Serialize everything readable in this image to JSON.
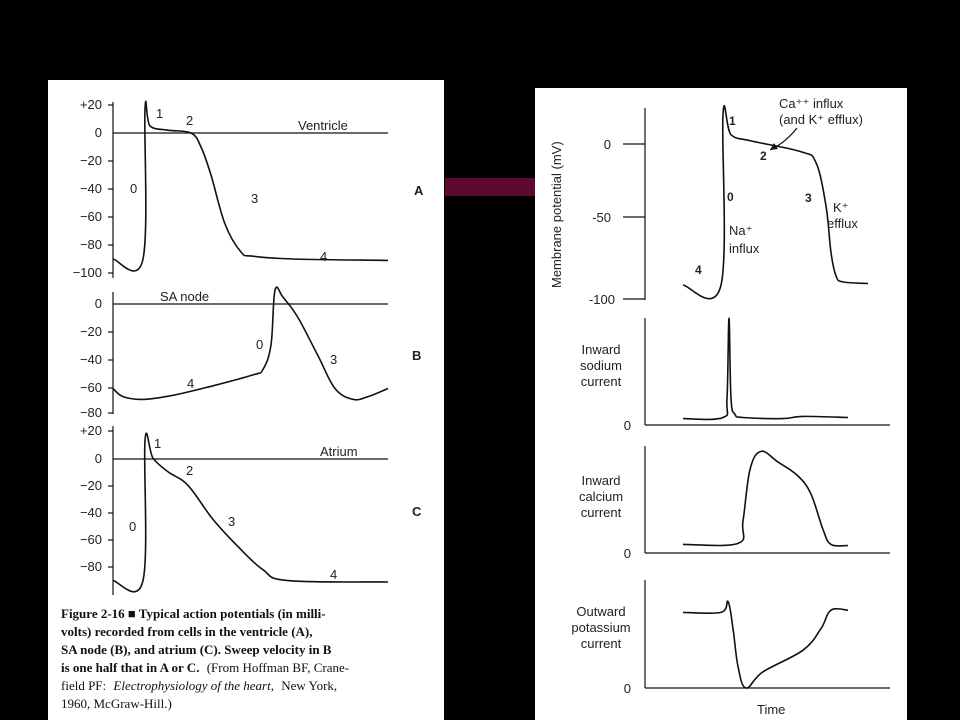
{
  "chart_data": [
    {
      "type": "line",
      "panel_letter": "A",
      "label": "Ventricle",
      "y_ticks": [
        "+20",
        "0",
        "−20",
        "−40",
        "−60",
        "−80",
        "−100"
      ],
      "ylim": [
        -100,
        20
      ],
      "phase_labels": [
        "0",
        "1",
        "2",
        "3",
        "4"
      ],
      "series": [
        {
          "x": [
            0,
            30,
            32,
            37,
            55,
            78,
            88,
            98,
            112,
            128,
            140,
            180,
            275
          ],
          "y": [
            -90,
            -90,
            17,
            5,
            2,
            0,
            -10,
            -30,
            -65,
            -85,
            -88,
            -90,
            -91
          ]
        }
      ]
    },
    {
      "type": "line",
      "panel_letter": "B",
      "label": "SA node",
      "y_ticks": [
        "0",
        "−20",
        "−40",
        "−60",
        "−80"
      ],
      "ylim": [
        -80,
        10
      ],
      "phase_labels": [
        "0",
        "3",
        "4"
      ],
      "series": [
        {
          "x": [
            0,
            10,
            30,
            60,
            100,
            140,
            150,
            158,
            162,
            170,
            185,
            205,
            222,
            240,
            255,
            275
          ],
          "y": [
            -62,
            -68,
            -70,
            -67,
            -60,
            -52,
            -48,
            -30,
            10,
            5,
            -10,
            -38,
            -62,
            -70,
            -68,
            -62
          ]
        }
      ]
    },
    {
      "type": "line",
      "panel_letter": "C",
      "label": "Atrium",
      "y_ticks": [
        "+20",
        "0",
        "−20",
        "−40",
        "−60",
        "−80"
      ],
      "ylim": [
        -90,
        20
      ],
      "phase_labels": [
        "0",
        "1",
        "2",
        "3",
        "4"
      ],
      "series": [
        {
          "x": [
            0,
            30,
            32,
            40,
            55,
            75,
            100,
            125,
            150,
            175,
            275
          ],
          "y": [
            -90,
            -90,
            13,
            0,
            -10,
            -20,
            -45,
            -65,
            -82,
            -90,
            -91
          ]
        }
      ]
    },
    {
      "type": "line",
      "ylabel": "Membrane potential (mV)",
      "y_ticks": [
        "0",
        "-50",
        "-100"
      ],
      "ylim": [
        -100,
        20
      ],
      "phase_labels": [
        "0",
        "1",
        "2",
        "3",
        "4"
      ],
      "annotations": [
        "Ca⁺⁺ influx",
        "(and K⁺ efflux)",
        "Na⁺",
        "influx",
        "K⁺",
        "efflux"
      ],
      "series": [
        {
          "x": [
            0,
            38,
            40,
            48,
            68,
            118,
            133,
            143,
            148,
            153,
            160,
            185
          ],
          "y": [
            -91,
            -91,
            19,
            6,
            2,
            -5,
            -12,
            -40,
            -70,
            -85,
            -89,
            -90
          ]
        }
      ]
    },
    {
      "type": "line",
      "ylabel": "Inward sodium current",
      "y_ticks": [
        "0"
      ],
      "series": [
        {
          "x": [
            0,
            40,
            44,
            46,
            48,
            52,
            60,
            100,
            120,
            165
          ],
          "y": [
            6,
            7,
            25,
            100,
            25,
            10,
            7,
            6,
            8,
            7
          ]
        }
      ]
    },
    {
      "type": "line",
      "ylabel": "Inward calcium current",
      "y_ticks": [
        "0"
      ],
      "series": [
        {
          "x": [
            0,
            55,
            60,
            67,
            78,
            95,
            115,
            128,
            140,
            148,
            165
          ],
          "y": [
            8,
            9,
            30,
            78,
            95,
            85,
            72,
            55,
            22,
            8,
            7
          ]
        }
      ]
    },
    {
      "type": "line",
      "ylabel": "Outward potassium current",
      "y_ticks": [
        "0"
      ],
      "series": [
        {
          "x": [
            0,
            38,
            45,
            50,
            55,
            63,
            80,
            120,
            138,
            148,
            165
          ],
          "y": [
            70,
            70,
            80,
            55,
            20,
            0,
            15,
            35,
            55,
            72,
            72
          ]
        }
      ]
    }
  ],
  "figure_caption": {
    "lines": [
      "Figure 2-16 ■ Typical action potentials (in milli-",
      "volts) recorded from cells in the ventricle (A),",
      "SA node (B), and atrium (C). Sweep velocity in B",
      "is one half that in A or C.",
      "(From Hoffman BF, Crane-",
      "field PF:",
      "Electrophysiology of the heart,",
      "New York,",
      "1960, McGraw-Hill.)"
    ]
  },
  "x_axis_label": "Time",
  "colors": {
    "background": "#000000",
    "panel": "#ffffff",
    "ink": "#111111",
    "connector": "#5c0a2f"
  }
}
